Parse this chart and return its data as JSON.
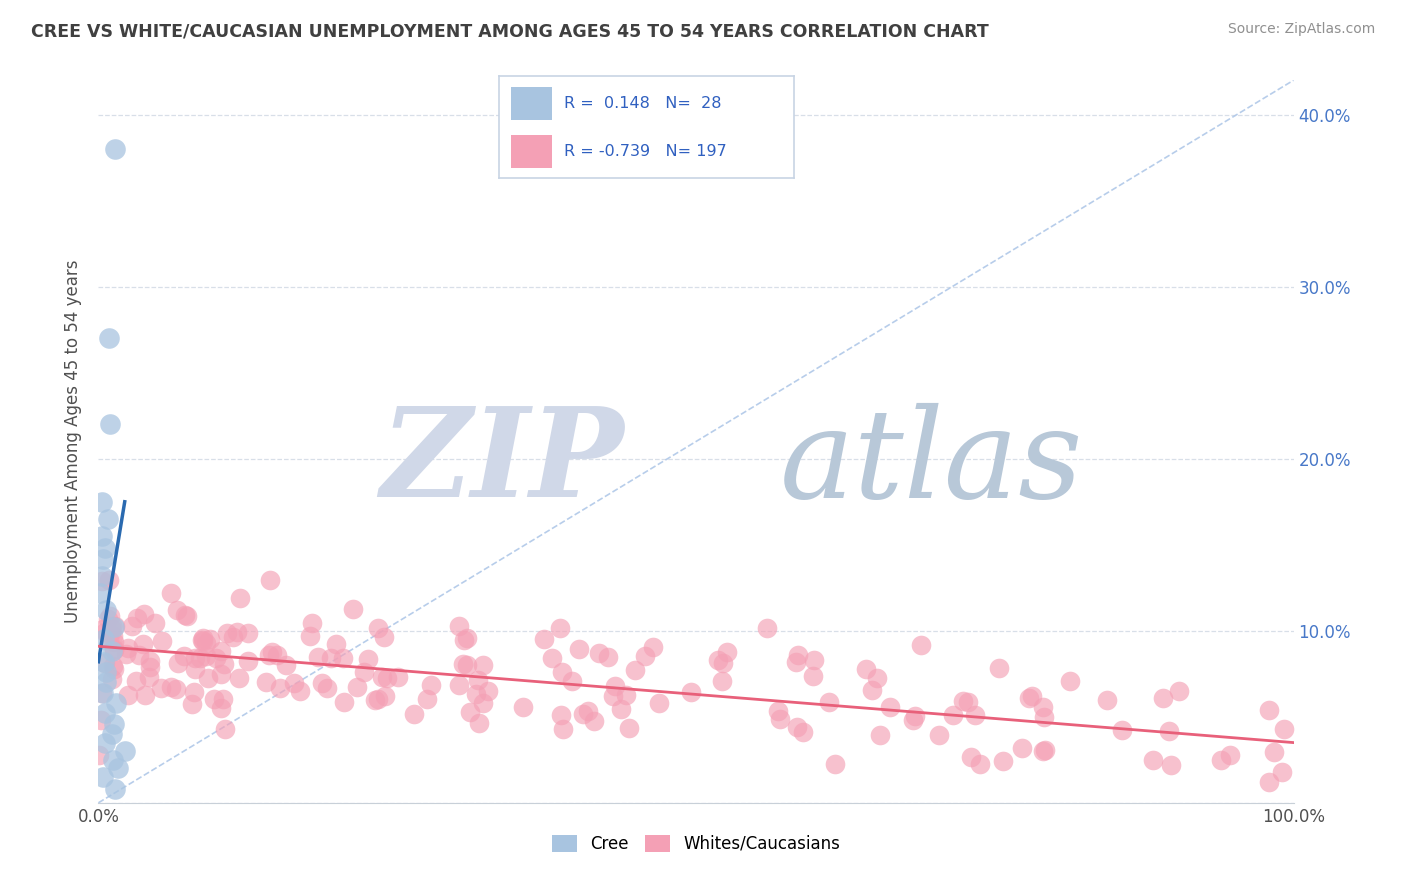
{
  "title": "CREE VS WHITE/CAUCASIAN UNEMPLOYMENT AMONG AGES 45 TO 54 YEARS CORRELATION CHART",
  "source": "Source: ZipAtlas.com",
  "ylabel": "Unemployment Among Ages 45 to 54 years",
  "xlim": [
    0,
    1.0
  ],
  "ylim": [
    0,
    0.42
  ],
  "xticks": [
    0.0,
    0.1,
    0.2,
    0.3,
    0.4,
    0.5,
    0.6,
    0.7,
    0.8,
    0.9,
    1.0
  ],
  "xticklabels": [
    "0.0%",
    "",
    "",
    "",
    "",
    "",
    "",
    "",
    "",
    "",
    "100.0%"
  ],
  "yticks": [
    0.0,
    0.1,
    0.2,
    0.3,
    0.4
  ],
  "yticklabels_right": [
    "",
    "10.0%",
    "20.0%",
    "30.0%",
    "40.0%"
  ],
  "cree_R": 0.148,
  "cree_N": 28,
  "white_R": -0.739,
  "white_N": 197,
  "cree_color": "#a8c4e0",
  "white_color": "#f4a0b5",
  "cree_line_color": "#2a6ab0",
  "white_line_color": "#e8607a",
  "diag_line_color": "#b0c8e8",
  "title_color": "#404040",
  "source_color": "#909090",
  "ylabel_color": "#505050",
  "ytick_color": "#4878c8",
  "xtick_color": "#505050",
  "grid_color": "#d8dfe8",
  "watermark_zip_color": "#d0d8e8",
  "watermark_atlas_color": "#b8c8d8",
  "background_color": "#ffffff",
  "legend_text_color": "#3060c0",
  "legend_border_color": "#c8d4e4",
  "cree_line_x": [
    0.0,
    0.022
  ],
  "cree_line_y": [
    0.082,
    0.175
  ],
  "white_line_x": [
    0.0,
    1.0
  ],
  "white_line_y": [
    0.091,
    0.035
  ]
}
